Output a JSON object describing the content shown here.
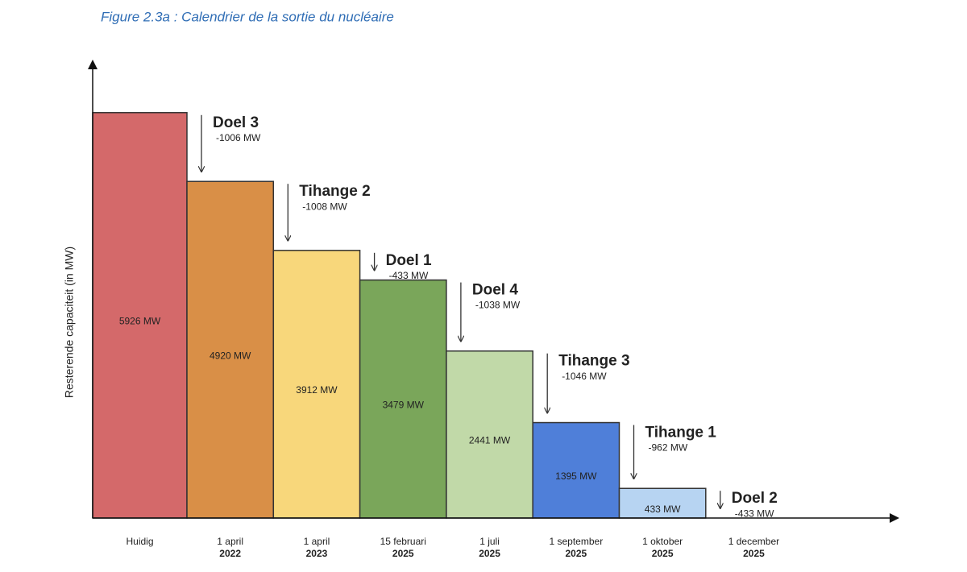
{
  "chart_data": {
    "type": "bar",
    "title": "Figure 2.3a : Calendrier de la sortie du nucléaire",
    "y_label": "Resterende capaciteit (in MW)",
    "categories": [
      [
        "Huidig"
      ],
      [
        "1 april",
        "2022"
      ],
      [
        "1 april",
        "2023"
      ],
      [
        "15 februari",
        "2025"
      ],
      [
        "1 juli",
        "2025"
      ],
      [
        "1 september",
        "2025"
      ],
      [
        "1 oktober",
        "2025"
      ],
      [
        "1 december",
        "2025"
      ]
    ],
    "values": [
      5926,
      4920,
      3912,
      3479,
      2441,
      1395,
      433,
      null
    ],
    "value_labels": [
      "5926 MW",
      "4920 MW",
      "3912 MW",
      "3479 MW",
      "2441 MW",
      "1395 MW",
      "433 MW",
      null
    ],
    "colors": [
      "#d4696a",
      "#d98f47",
      "#f8d77b",
      "#7aa65a",
      "#c1d9a8",
      "#4f7fd9",
      "#b7d4f2",
      null
    ],
    "annotations": [
      {
        "label": "Doel 3",
        "change": -1006,
        "change_label": "-1006 MW"
      },
      {
        "label": "Tihange 2",
        "change": -1008,
        "change_label": "-1008 MW"
      },
      {
        "label": "Doel 1",
        "change": -433,
        "change_label": "-433 MW"
      },
      {
        "label": "Doel 4",
        "change": -1038,
        "change_label": "-1038 MW"
      },
      {
        "label": "Tihange 3",
        "change": -1046,
        "change_label": "-1046 MW"
      },
      {
        "label": "Tihange 1",
        "change": -962,
        "change_label": "-962 MW"
      },
      {
        "label": "Doel 2",
        "change": -433,
        "change_label": "-433 MW"
      }
    ],
    "ylim": [
      0,
      6630
    ]
  }
}
